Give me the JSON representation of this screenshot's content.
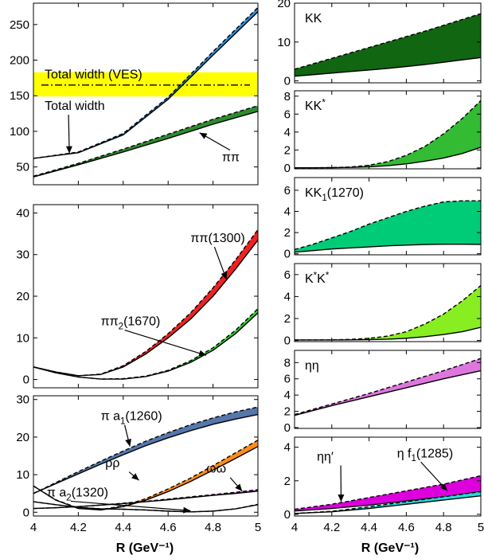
{
  "figure": {
    "xlabel_left": "R (GeV⁻¹)",
    "xlabel_right": "R (GeV⁻¹)"
  },
  "colors": {
    "pipi": "#2e8b2e",
    "total": "#2e8fd6",
    "ves_band": "#ffff00",
    "pipi1300": "#ee2222",
    "pipi2": "#33cc33",
    "pia1": "#5577aa",
    "rhorho": "#ff8c1a",
    "omegaomega": "#cc33cc",
    "pia2": "#33cccc",
    "kk": "#116611",
    "kkstar": "#33bb33",
    "kk1": "#00cc77",
    "kstarkstar": "#88ee22",
    "etaeta": "#dd77dd",
    "etaetaprime": "#dd00dd",
    "etaf1": "#22dddd"
  },
  "chart_data": [
    {
      "id": "p1",
      "type": "area",
      "xlim": [
        4,
        5
      ],
      "ylim": [
        25,
        280
      ],
      "yticks": [
        50,
        100,
        150,
        200,
        250
      ],
      "xticks": [
        4,
        4.2,
        4.4,
        4.6,
        4.8,
        5
      ],
      "ves_band": {
        "y0": 149,
        "y1": 183,
        "center": 165,
        "label": "Total width (VES)"
      },
      "series": [
        {
          "name": "Total width",
          "color_key": "total",
          "x": [
            4,
            4.2,
            4.4,
            4.6,
            4.8,
            5
          ],
          "lower": [
            62,
            70,
            95,
            145,
            207,
            268
          ],
          "upper": [
            62,
            71,
            97,
            148,
            212,
            274
          ]
        },
        {
          "name": "ππ",
          "color_key": "pipi",
          "x": [
            4,
            4.2,
            4.4,
            4.6,
            4.8,
            5
          ],
          "lower": [
            36,
            53,
            71,
            90,
            110,
            128
          ],
          "upper": [
            37,
            55,
            75,
            96,
            117,
            136
          ]
        }
      ],
      "annotations": [
        {
          "text": "Total width",
          "x": 4.05,
          "y": 130,
          "arrow_to": [
            4.16,
            69
          ]
        },
        {
          "text": "ππ",
          "x": 4.84,
          "y": 58,
          "arrow_to": [
            4.74,
            98
          ]
        }
      ]
    },
    {
      "id": "p2",
      "type": "area",
      "xlim": [
        4,
        5
      ],
      "ylim": [
        -2,
        42
      ],
      "yticks": [
        0,
        10,
        20,
        30,
        40
      ],
      "xticks": [
        4,
        4.2,
        4.4,
        4.6,
        4.8,
        5
      ],
      "series": [
        {
          "name": "ππ(1300)",
          "color_key": "pipi1300",
          "x": [
            4,
            4.1,
            4.2,
            4.3,
            4.4,
            4.5,
            4.6,
            4.7,
            4.8,
            4.9,
            5
          ],
          "lower": [
            3.0,
            1.8,
            0.9,
            1.2,
            3.0,
            6.1,
            10.0,
            14.5,
            20.0,
            26.5,
            33.5
          ],
          "upper": [
            3.0,
            1.8,
            0.9,
            1.3,
            3.3,
            6.7,
            11.0,
            16.0,
            22.0,
            28.7,
            36.0
          ]
        },
        {
          "name": "ππ₂(1670)",
          "color_key": "pipi2",
          "x": [
            4,
            4.1,
            4.2,
            4.3,
            4.4,
            4.5,
            4.6,
            4.7,
            4.8,
            4.9,
            5
          ],
          "lower": [
            3.0,
            1.6,
            0.6,
            0.1,
            0.1,
            0.7,
            2.0,
            4.1,
            7.0,
            11.0,
            16.0
          ],
          "upper": [
            3.0,
            1.6,
            0.6,
            0.1,
            0.2,
            0.8,
            2.2,
            4.5,
            7.6,
            11.8,
            17.0
          ]
        }
      ],
      "annotations": [
        {
          "text": "ππ(1300)",
          "x": 4.7,
          "y": 33,
          "arrow_to": [
            4.86,
            24
          ]
        },
        {
          "text": "ππ₂(1670)",
          "x": 4.3,
          "y": 13,
          "arrow_to": [
            4.77,
            5.8
          ]
        }
      ]
    },
    {
      "id": "p3",
      "type": "area",
      "xlim": [
        4,
        5
      ],
      "ylim": [
        -1,
        31
      ],
      "yticks": [
        0,
        10,
        20,
        30
      ],
      "xticks": [
        4,
        4.2,
        4.4,
        4.6,
        4.8,
        5
      ],
      "series": [
        {
          "name": "π a₁(1260)",
          "color_key": "pia1",
          "x": [
            4,
            4.1,
            4.2,
            4.3,
            4.4,
            4.5,
            4.6,
            4.7,
            4.8,
            4.9,
            5
          ],
          "lower": [
            5.0,
            7.6,
            10.2,
            12.8,
            15.3,
            17.7,
            19.8,
            21.7,
            23.4,
            24.8,
            26.0
          ],
          "upper": [
            5.0,
            7.9,
            10.8,
            13.6,
            16.3,
            18.9,
            21.2,
            23.3,
            25.1,
            26.7,
            28.0
          ]
        },
        {
          "name": "ρρ",
          "color_key": "rhorho",
          "x": [
            4,
            4.1,
            4.2,
            4.3,
            4.4,
            4.5,
            4.6,
            4.7,
            4.8,
            4.9,
            5
          ],
          "lower": [
            7.0,
            3.2,
            1.0,
            0.6,
            1.5,
            3.2,
            5.5,
            8.2,
            11.2,
            14.3,
            17.5
          ],
          "upper": [
            7.0,
            3.3,
            1.1,
            0.7,
            1.7,
            3.6,
            6.2,
            9.1,
            12.4,
            15.8,
            19.2
          ]
        },
        {
          "name": "ωω",
          "color_key": "omegaomega",
          "x": [
            4,
            4.1,
            4.2,
            4.3,
            4.4,
            4.5,
            4.6,
            4.7,
            4.8,
            4.9,
            5
          ],
          "lower": [
            1.0,
            1.2,
            1.5,
            1.9,
            2.3,
            2.8,
            3.3,
            3.9,
            4.5,
            5.0,
            5.6
          ],
          "upper": [
            1.0,
            1.2,
            1.5,
            1.9,
            2.4,
            2.9,
            3.5,
            4.1,
            4.7,
            5.3,
            6.0
          ]
        },
        {
          "name": "π a₂(1320)",
          "color_key": "pia2",
          "x": [
            4,
            4.1,
            4.2,
            4.3,
            4.4,
            4.5,
            4.6,
            4.7,
            4.8,
            4.9,
            5
          ],
          "lower": [
            2.8,
            2.0,
            1.3,
            0.9,
            0.8,
            0.6,
            0.3,
            0.1,
            0.3,
            0.9,
            2.0
          ],
          "upper": [
            2.8,
            2.0,
            1.3,
            0.9,
            0.8,
            0.6,
            0.3,
            0.1,
            0.3,
            0.9,
            2.1
          ]
        }
      ],
      "annotations": [
        {
          "text": "π a₁(1260)",
          "x": 4.3,
          "y": 24.5,
          "arrow_to": [
            4.43,
            17.5
          ]
        },
        {
          "text": "ρρ",
          "x": 4.32,
          "y": 12,
          "arrow_to": [
            4.47,
            8.5
          ]
        },
        {
          "text": "ωω",
          "x": 4.77,
          "y": 10.5,
          "arrow_to": [
            4.93,
            5.6
          ]
        },
        {
          "text": "π a₂(1320)",
          "x": 4.06,
          "y": 4.2,
          "arrow_to": [
            4.7,
            0.4
          ]
        }
      ]
    },
    {
      "id": "r1",
      "type": "area",
      "label": "KK",
      "color_key": "kk",
      "xlim": [
        4,
        5
      ],
      "ylim": [
        -0.5,
        20
      ],
      "yticks": [
        0,
        10,
        20
      ],
      "xticks": [
        4,
        4.2,
        4.4,
        4.6,
        4.8,
        5
      ],
      "x": [
        4,
        4.1,
        4.2,
        4.3,
        4.4,
        4.5,
        4.6,
        4.7,
        4.8,
        4.9,
        5
      ],
      "lower": [
        1.2,
        1.6,
        2.0,
        2.4,
        2.8,
        3.2,
        3.7,
        4.2,
        4.8,
        5.4,
        6.0
      ],
      "upper": [
        3.0,
        4.4,
        5.8,
        7.2,
        8.6,
        10.0,
        11.4,
        12.8,
        14.3,
        15.8,
        17.3
      ]
    },
    {
      "id": "r2",
      "type": "area",
      "label": "KK*",
      "color_key": "kkstar",
      "xlim": [
        4,
        5
      ],
      "ylim": [
        -0.1,
        8.6
      ],
      "yticks": [
        0,
        2,
        4,
        6,
        8
      ],
      "xticks": [
        4,
        4.2,
        4.4,
        4.6,
        4.8,
        5
      ],
      "x": [
        4,
        4.1,
        4.2,
        4.3,
        4.4,
        4.5,
        4.6,
        4.7,
        4.8,
        4.9,
        5
      ],
      "lower": [
        0.02,
        0.02,
        0.03,
        0.06,
        0.12,
        0.25,
        0.45,
        0.75,
        1.1,
        1.6,
        2.3
      ],
      "upper": [
        0.02,
        0.02,
        0.04,
        0.1,
        0.3,
        0.7,
        1.4,
        2.4,
        3.8,
        5.5,
        7.5
      ]
    },
    {
      "id": "r3",
      "type": "area",
      "label": "KK₁(1270)",
      "color_key": "kk1",
      "xlim": [
        4,
        5
      ],
      "ylim": [
        -0.1,
        7.2
      ],
      "yticks": [
        0,
        2,
        4,
        6
      ],
      "xticks": [
        4,
        4.2,
        4.4,
        4.6,
        4.8,
        5
      ],
      "x": [
        4,
        4.1,
        4.2,
        4.3,
        4.4,
        4.5,
        4.6,
        4.7,
        4.8,
        4.9,
        5
      ],
      "lower": [
        0.15,
        0.3,
        0.45,
        0.55,
        0.65,
        0.75,
        0.82,
        0.87,
        0.9,
        0.9,
        0.88
      ],
      "upper": [
        0.4,
        0.9,
        1.5,
        2.1,
        2.8,
        3.4,
        4.0,
        4.5,
        4.9,
        5.0,
        5.0
      ]
    },
    {
      "id": "r4",
      "type": "area",
      "label": "K*K*",
      "color_key": "kstarkstar",
      "xlim": [
        4,
        5
      ],
      "ylim": [
        -0.1,
        7.0
      ],
      "yticks": [
        0,
        2,
        4,
        6
      ],
      "xticks": [
        4,
        4.2,
        4.4,
        4.6,
        4.8,
        5
      ],
      "x": [
        4,
        4.1,
        4.2,
        4.3,
        4.4,
        4.5,
        4.6,
        4.7,
        4.8,
        4.9,
        5
      ],
      "lower": [
        0.05,
        0.05,
        0.05,
        0.06,
        0.08,
        0.12,
        0.2,
        0.35,
        0.55,
        0.8,
        1.2
      ],
      "upper": [
        0.05,
        0.05,
        0.06,
        0.1,
        0.2,
        0.4,
        0.8,
        1.5,
        2.4,
        3.6,
        5.0
      ]
    },
    {
      "id": "r5",
      "type": "area",
      "label": "ηη",
      "color_key": "etaeta",
      "xlim": [
        4,
        5
      ],
      "ylim": [
        -0.1,
        9.5
      ],
      "yticks": [
        0,
        2,
        4,
        6,
        8
      ],
      "xticks": [
        4,
        4.2,
        4.4,
        4.6,
        4.8,
        5
      ],
      "x": [
        4,
        4.2,
        4.4,
        4.6,
        4.8,
        5
      ],
      "lower": [
        1.5,
        2.7,
        3.8,
        4.9,
        6.0,
        7.0
      ],
      "upper": [
        1.6,
        2.9,
        4.2,
        5.6,
        7.0,
        8.5
      ]
    },
    {
      "id": "r6",
      "type": "area",
      "xlim": [
        4,
        5
      ],
      "ylim": [
        -0.1,
        4.6
      ],
      "yticks": [
        0,
        2,
        4
      ],
      "xticks": [
        4,
        4.2,
        4.4,
        4.6,
        4.8,
        5
      ],
      "series": [
        {
          "name": "ηη′",
          "color_key": "etaetaprime",
          "x": [
            4,
            4.2,
            4.4,
            4.6,
            4.8,
            5
          ],
          "lower": [
            0.2,
            0.35,
            0.55,
            0.8,
            1.05,
            1.35
          ],
          "upper": [
            0.3,
            0.6,
            1.0,
            1.4,
            1.8,
            2.3
          ]
        },
        {
          "name": "η f₁(1285)",
          "color_key": "etaf1",
          "x": [
            4,
            4.2,
            4.4,
            4.6,
            4.8,
            5
          ],
          "lower": [
            0.05,
            0.15,
            0.35,
            0.6,
            0.85,
            1.1
          ],
          "upper": [
            0.05,
            0.18,
            0.45,
            0.75,
            1.05,
            1.35
          ]
        }
      ],
      "annotations": [
        {
          "text": "ηη′",
          "x": 4.12,
          "y": 3.2,
          "arrow_to": [
            4.25,
            0.75
          ]
        },
        {
          "text": "η f₁(1285)",
          "x": 4.55,
          "y": 3.4,
          "arrow_to": [
            4.82,
            1.4
          ]
        }
      ]
    }
  ]
}
